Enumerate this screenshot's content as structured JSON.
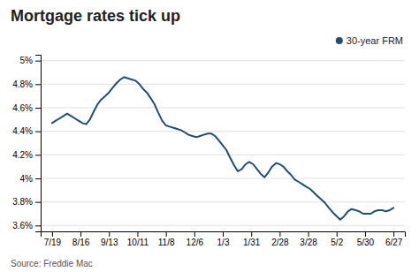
{
  "chart_data": {
    "type": "line",
    "title": "Mortgage rates tick up",
    "source": "Source: Freddie Mac",
    "x": [
      0.0,
      0.13,
      0.27,
      0.4,
      0.53,
      0.67,
      0.8,
      0.93,
      1.07,
      1.2,
      1.33,
      1.47,
      1.6,
      1.73,
      1.87,
      2.0,
      2.13,
      2.27,
      2.4,
      2.53,
      2.67,
      2.8,
      2.93,
      3.07,
      3.2,
      3.33,
      3.47,
      3.6,
      3.73,
      3.87,
      4.0,
      4.13,
      4.27,
      4.4,
      4.53,
      4.67,
      4.8,
      4.93,
      5.07,
      5.2,
      5.33,
      5.47,
      5.6,
      5.73,
      5.87,
      6.0,
      6.13,
      6.27,
      6.4,
      6.53,
      6.67,
      6.8,
      6.93,
      7.07,
      7.2,
      7.33,
      7.47,
      7.6,
      7.73,
      7.87,
      8.0,
      8.13,
      8.27,
      8.4,
      8.53,
      8.67,
      8.8,
      8.93,
      9.07,
      9.2,
      9.33,
      9.47,
      9.6,
      9.73,
      9.87,
      10.0,
      10.13,
      10.27,
      10.4,
      10.53,
      10.67,
      10.8,
      10.93,
      11.07,
      11.2,
      11.33,
      11.47,
      11.6,
      11.73,
      11.87,
      12.0
    ],
    "series": [
      {
        "name": "30-year FRM",
        "color": "#1f4e79",
        "values": [
          4.47,
          4.49,
          4.51,
          4.53,
          4.55,
          4.53,
          4.51,
          4.49,
          4.47,
          4.46,
          4.5,
          4.57,
          4.63,
          4.67,
          4.7,
          4.73,
          4.77,
          4.81,
          4.84,
          4.86,
          4.85,
          4.84,
          4.83,
          4.8,
          4.76,
          4.73,
          4.68,
          4.63,
          4.56,
          4.49,
          4.45,
          4.44,
          4.43,
          4.42,
          4.41,
          4.39,
          4.37,
          4.36,
          4.35,
          4.36,
          4.37,
          4.38,
          4.38,
          4.36,
          4.32,
          4.28,
          4.24,
          4.17,
          4.11,
          4.06,
          4.08,
          4.12,
          4.14,
          4.12,
          4.08,
          4.04,
          4.01,
          4.05,
          4.1,
          4.13,
          4.12,
          4.1,
          4.06,
          4.03,
          3.99,
          3.97,
          3.95,
          3.93,
          3.91,
          3.88,
          3.85,
          3.82,
          3.79,
          3.75,
          3.71,
          3.68,
          3.65,
          3.68,
          3.72,
          3.74,
          3.73,
          3.72,
          3.7,
          3.7,
          3.7,
          3.72,
          3.73,
          3.73,
          3.72,
          3.73,
          3.75
        ]
      }
    ],
    "xlim": [
      -0.4,
      12.4
    ],
    "xticks": [
      {
        "value": 0,
        "label": "7/19"
      },
      {
        "value": 1,
        "label": "8/16"
      },
      {
        "value": 2,
        "label": "9/13"
      },
      {
        "value": 3,
        "label": "10/11"
      },
      {
        "value": 4,
        "label": "11/8"
      },
      {
        "value": 5,
        "label": "12/6"
      },
      {
        "value": 6,
        "label": "1/3"
      },
      {
        "value": 7,
        "label": "1/31"
      },
      {
        "value": 8,
        "label": "2/28"
      },
      {
        "value": 9,
        "label": "3/28"
      },
      {
        "value": 10,
        "label": "5/2"
      },
      {
        "value": 11,
        "label": "5/30"
      },
      {
        "value": 12,
        "label": "6/27"
      }
    ],
    "ylim": [
      3.55,
      5.05
    ],
    "yticks": [
      {
        "value": 3.6,
        "label": "3.6%"
      },
      {
        "value": 3.8,
        "label": "3.8%"
      },
      {
        "value": 4.0,
        "label": "4%"
      },
      {
        "value": 4.2,
        "label": "4.2%"
      },
      {
        "value": 4.4,
        "label": "4.4%"
      },
      {
        "value": 4.6,
        "label": "4.6%"
      },
      {
        "value": 4.8,
        "label": "4.8%"
      },
      {
        "value": 5.0,
        "label": "5%"
      }
    ],
    "grid": "y",
    "legend": "upper right"
  }
}
